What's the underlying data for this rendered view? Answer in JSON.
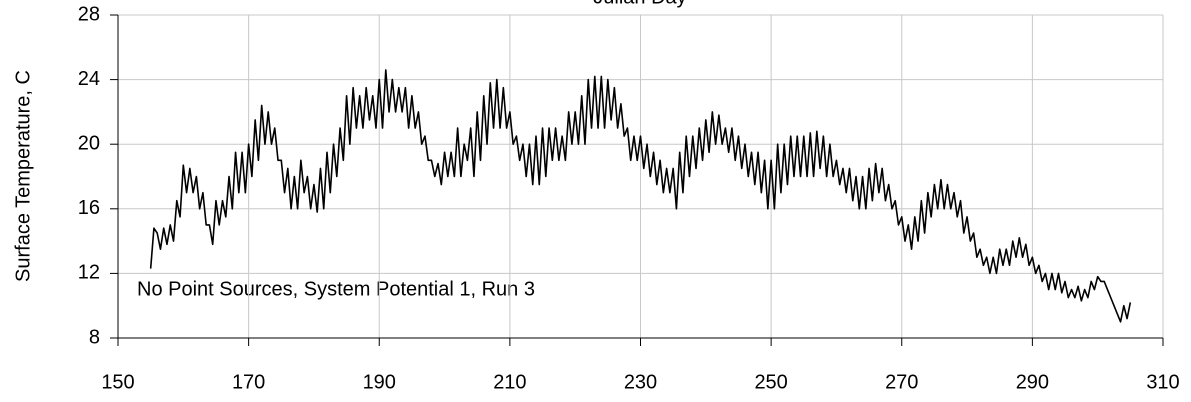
{
  "chart_data": {
    "type": "line",
    "xlabel": "Julian Day",
    "ylabel": "Surface Temperature, C",
    "annotation": "No Point Sources, System Potential 1, Run 3",
    "color": "#000000",
    "grid": true,
    "xlim": [
      150,
      310
    ],
    "xticks": [
      150,
      170,
      190,
      210,
      230,
      250,
      270,
      290,
      310
    ],
    "ylim": [
      8,
      28
    ],
    "yticks": [
      8,
      12,
      16,
      20,
      24,
      28
    ],
    "x": [
      155,
      155.5,
      156,
      156.5,
      157,
      157.5,
      158,
      158.5,
      159,
      159.5,
      160,
      160.5,
      161,
      161.5,
      162,
      162.5,
      163,
      163.5,
      164,
      164.5,
      165,
      165.5,
      166,
      166.5,
      167,
      167.5,
      168,
      168.5,
      169,
      169.5,
      170,
      170.5,
      171,
      171.5,
      172,
      172.5,
      173,
      173.5,
      174,
      174.5,
      175,
      175.5,
      176,
      176.5,
      177,
      177.5,
      178,
      178.5,
      179,
      179.5,
      180,
      180.5,
      181,
      181.5,
      182,
      182.5,
      183,
      183.5,
      184,
      184.5,
      185,
      185.5,
      186,
      186.5,
      187,
      187.5,
      188,
      188.5,
      189,
      189.5,
      190,
      190.5,
      191,
      191.5,
      192,
      192.5,
      193,
      193.5,
      194,
      194.5,
      195,
      195.5,
      196,
      196.5,
      197,
      197.5,
      198,
      198.5,
      199,
      199.5,
      200,
      200.5,
      201,
      201.5,
      202,
      202.5,
      203,
      203.5,
      204,
      204.5,
      205,
      205.5,
      206,
      206.5,
      207,
      207.5,
      208,
      208.5,
      209,
      209.5,
      210,
      210.5,
      211,
      211.5,
      212,
      212.5,
      213,
      213.5,
      214,
      214.5,
      215,
      215.5,
      216,
      216.5,
      217,
      217.5,
      218,
      218.5,
      219,
      219.5,
      220,
      220.5,
      221,
      221.5,
      222,
      222.5,
      223,
      223.5,
      224,
      224.5,
      225,
      225.5,
      226,
      226.5,
      227,
      227.5,
      228,
      228.5,
      229,
      229.5,
      230,
      230.5,
      231,
      231.5,
      232,
      232.5,
      233,
      233.5,
      234,
      234.5,
      235,
      235.5,
      236,
      236.5,
      237,
      237.5,
      238,
      238.5,
      239,
      239.5,
      240,
      240.5,
      241,
      241.5,
      242,
      242.5,
      243,
      243.5,
      244,
      244.5,
      245,
      245.5,
      246,
      246.5,
      247,
      247.5,
      248,
      248.5,
      249,
      249.5,
      250,
      250.5,
      251,
      251.5,
      252,
      252.5,
      253,
      253.5,
      254,
      254.5,
      255,
      255.5,
      256,
      256.5,
      257,
      257.5,
      258,
      258.5,
      259,
      259.5,
      260,
      260.5,
      261,
      261.5,
      262,
      262.5,
      263,
      263.5,
      264,
      264.5,
      265,
      265.5,
      266,
      266.5,
      267,
      267.5,
      268,
      268.5,
      269,
      269.5,
      270,
      270.5,
      271,
      271.5,
      272,
      272.5,
      273,
      273.5,
      274,
      274.5,
      275,
      275.5,
      276,
      276.5,
      277,
      277.5,
      278,
      278.5,
      279,
      279.5,
      280,
      280.5,
      281,
      281.5,
      282,
      282.5,
      283,
      283.5,
      284,
      284.5,
      285,
      285.5,
      286,
      286.5,
      287,
      287.5,
      288,
      288.5,
      289,
      289.5,
      290,
      290.5,
      291,
      291.5,
      292,
      292.5,
      293,
      293.5,
      294,
      294.5,
      295,
      295.5,
      296,
      296.5,
      297,
      297.5,
      298,
      298.5,
      299,
      299.5,
      300,
      300.5,
      301,
      301.5,
      302,
      302.5,
      303,
      303.5,
      304,
      304.5,
      305
    ],
    "values": [
      12.3,
      14.8,
      14.5,
      13.5,
      14.8,
      13.8,
      15,
      14,
      16.5,
      15.5,
      18.7,
      17,
      18.5,
      17,
      18,
      16,
      17,
      15,
      15,
      13.8,
      16.5,
      15,
      16.5,
      15.5,
      18,
      16,
      19.5,
      17,
      19.5,
      17,
      20,
      18,
      21.5,
      19,
      22.4,
      20,
      22,
      20,
      21,
      19,
      19,
      17,
      18.5,
      16,
      18,
      16,
      19,
      17,
      18,
      16,
      17.5,
      15.8,
      18.5,
      16,
      19.5,
      17,
      20,
      18,
      21,
      19,
      23,
      20,
      23.5,
      21,
      23,
      21,
      23.5,
      21.5,
      23,
      21,
      24,
      21,
      24.6,
      22,
      24,
      22,
      23.5,
      22,
      23.5,
      21,
      23,
      21,
      22,
      20,
      20.5,
      19,
      19,
      18,
      18.8,
      17.5,
      19.5,
      18,
      19.5,
      18,
      21,
      18,
      20,
      19,
      21,
      18,
      22,
      19,
      23,
      20,
      23.8,
      21,
      24,
      21,
      23.5,
      21,
      22,
      20,
      20.5,
      19,
      20,
      18,
      20,
      17.5,
      20.5,
      17.5,
      21,
      18,
      21,
      19,
      21,
      19,
      20.5,
      19,
      22,
      20,
      22,
      20,
      23,
      20,
      24,
      21,
      24.2,
      21,
      24.2,
      21,
      24,
      21.5,
      23.5,
      21,
      22.5,
      20.5,
      21,
      19,
      20.5,
      19,
      20.5,
      18.5,
      20,
      18,
      19.5,
      17.5,
      19,
      17,
      18.5,
      17,
      18.5,
      16,
      19.5,
      17,
      20.5,
      18,
      20.5,
      18.5,
      21,
      19,
      21.5,
      19.5,
      22,
      20,
      21.8,
      20,
      21,
      19.5,
      21,
      19,
      20.5,
      18.5,
      20,
      18,
      19.5,
      17.5,
      19.5,
      17,
      19,
      16,
      19,
      16,
      20,
      17,
      20,
      17.5,
      20.5,
      18,
      20.5,
      18,
      20.5,
      18,
      20.7,
      18,
      20.8,
      18.5,
      20.5,
      18,
      20,
      18,
      19,
      17.5,
      18.5,
      17,
      18.5,
      16.5,
      18,
      16,
      18,
      16,
      18.5,
      16.5,
      18.8,
      17,
      18.5,
      16.5,
      17.5,
      16,
      16.5,
      15,
      15.5,
      14,
      15,
      13.5,
      15.5,
      14,
      16.5,
      14.5,
      17,
      15.5,
      17.5,
      16,
      17.8,
      16,
      17.5,
      16,
      17,
      15.5,
      16.5,
      14.5,
      15.5,
      14,
      14.5,
      13,
      13.5,
      12.5,
      13,
      12,
      13,
      12,
      13.5,
      12.5,
      13.5,
      12.5,
      14,
      13,
      14.2,
      13,
      13.8,
      12.5,
      13,
      12,
      12.5,
      11.5,
      12,
      11,
      12,
      11,
      12,
      10.8,
      11.5,
      10.5,
      11,
      10.5,
      11.2,
      10.3,
      11,
      10.5,
      11.5,
      11,
      11.8,
      11.5,
      11.5,
      11,
      10.5,
      10,
      9.5,
      9,
      10,
      9.2,
      10.2
    ]
  }
}
